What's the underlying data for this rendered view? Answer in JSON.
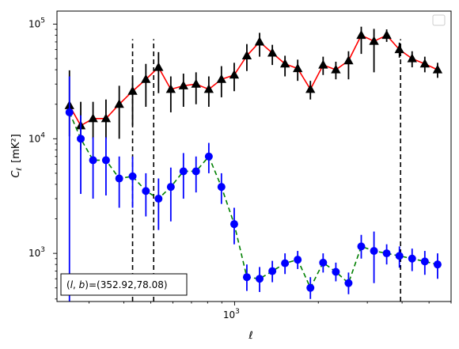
{
  "chart_data": {
    "type": "scatter",
    "xlabel": "ℓ",
    "ylabel_main": "C",
    "ylabel_sub": "ℓ",
    "ylabel_unit": "[mK²]",
    "x_scale": "log",
    "y_scale": "log",
    "xlim": [
      230,
      6000
    ],
    "ylim": [
      380,
      130000
    ],
    "x_tick_labels": [
      {
        "value": 1000,
        "base": "10",
        "exp": "3"
      }
    ],
    "y_tick_labels": [
      {
        "value": 1000,
        "base": "10",
        "exp": "3"
      },
      {
        "value": 10000,
        "base": "10",
        "exp": "4"
      },
      {
        "value": 100000,
        "base": "10",
        "exp": "5"
      }
    ],
    "grid": false,
    "legend": "top-right, empty",
    "vlines": [
      {
        "x": 430,
        "ymin": 380,
        "ymax": 74000,
        "color": "#000000",
        "style": "dashed"
      },
      {
        "x": 512,
        "ymin": 380,
        "ymax": 74000,
        "color": "#000000",
        "style": "dashed"
      },
      {
        "x": 3950,
        "ymin": 380,
        "ymax": 74000,
        "color": "#000000",
        "style": "dashed"
      }
    ],
    "annotation": {
      "text": "(l, b)=(352.92,78.08)",
      "prefix": "(",
      "l": "l",
      "comma": ", ",
      "b": "b",
      "suffix": ")=(352.92,78.08)"
    },
    "series": [
      {
        "marker": "triangle",
        "marker_color": "#000000",
        "line_color": "#ff0000",
        "line_style": "solid",
        "error_color": "#000000",
        "x": [
          255,
          280,
          310,
          345,
          385,
          430,
          480,
          533,
          590,
          655,
          727,
          808,
          897,
          997,
          1107,
          1230,
          1367,
          1518,
          1686,
          1873,
          2081,
          2312,
          2568,
          2853,
          3170,
          3521,
          3912,
          4346,
          4828,
          5365
        ],
        "y": [
          19500,
          13000,
          15000,
          15000,
          20000,
          26000,
          33000,
          42000,
          27000,
          29000,
          30000,
          27000,
          33000,
          36000,
          53000,
          70000,
          56000,
          45000,
          41000,
          27000,
          44000,
          40000,
          48000,
          80000,
          71000,
          80000,
          60000,
          50000,
          45000,
          40000
        ],
        "yerr_low": [
          9000,
          5000,
          5000,
          5000,
          10000,
          13000,
          14000,
          17000,
          10000,
          10000,
          10000,
          8000,
          10000,
          10000,
          14000,
          18000,
          12000,
          10000,
          9000,
          5000,
          8000,
          7000,
          15000,
          25000,
          33000,
          10000,
          9000,
          8000,
          7000,
          6000
        ],
        "yerr_high": [
          20000,
          8000,
          6000,
          7000,
          9000,
          9000,
          12000,
          15000,
          8000,
          8000,
          8000,
          8000,
          10000,
          10000,
          14000,
          14000,
          10000,
          8000,
          8000,
          5000,
          8000,
          7000,
          10000,
          15000,
          20000,
          10000,
          9000,
          8000,
          7000,
          6000
        ]
      },
      {
        "marker": "circle",
        "marker_color": "#0000ff",
        "line_color": "#008000",
        "line_style": "dashed",
        "error_color": "#0000ff",
        "x": [
          255,
          280,
          310,
          345,
          385,
          430,
          480,
          533,
          590,
          655,
          727,
          808,
          897,
          997,
          1107,
          1230,
          1367,
          1518,
          1686,
          1873,
          2081,
          2312,
          2568,
          2853,
          3170,
          3521,
          3912,
          4346,
          4828,
          5365
        ],
        "y": [
          17000,
          10000,
          6500,
          6500,
          4500,
          4700,
          3500,
          3000,
          3800,
          5200,
          5200,
          7000,
          3800,
          1800,
          620,
          600,
          700,
          820,
          880,
          500,
          830,
          690,
          550,
          1150,
          1050,
          1000,
          950,
          900,
          850,
          800
        ],
        "yerr_low": [
          16620,
          6700,
          3500,
          3300,
          2000,
          2200,
          1400,
          1400,
          1900,
          2200,
          1800,
          2000,
          1100,
          600,
          150,
          140,
          140,
          160,
          150,
          100,
          150,
          120,
          110,
          250,
          500,
          200,
          200,
          200,
          200,
          200
        ],
        "yerr_high": [
          18000,
          6000,
          3800,
          3800,
          2500,
          2300,
          1500,
          1500,
          1800,
          2300,
          1800,
          2200,
          1200,
          700,
          180,
          160,
          160,
          180,
          170,
          120,
          170,
          140,
          130,
          300,
          500,
          200,
          200,
          200,
          200,
          200
        ]
      }
    ]
  }
}
